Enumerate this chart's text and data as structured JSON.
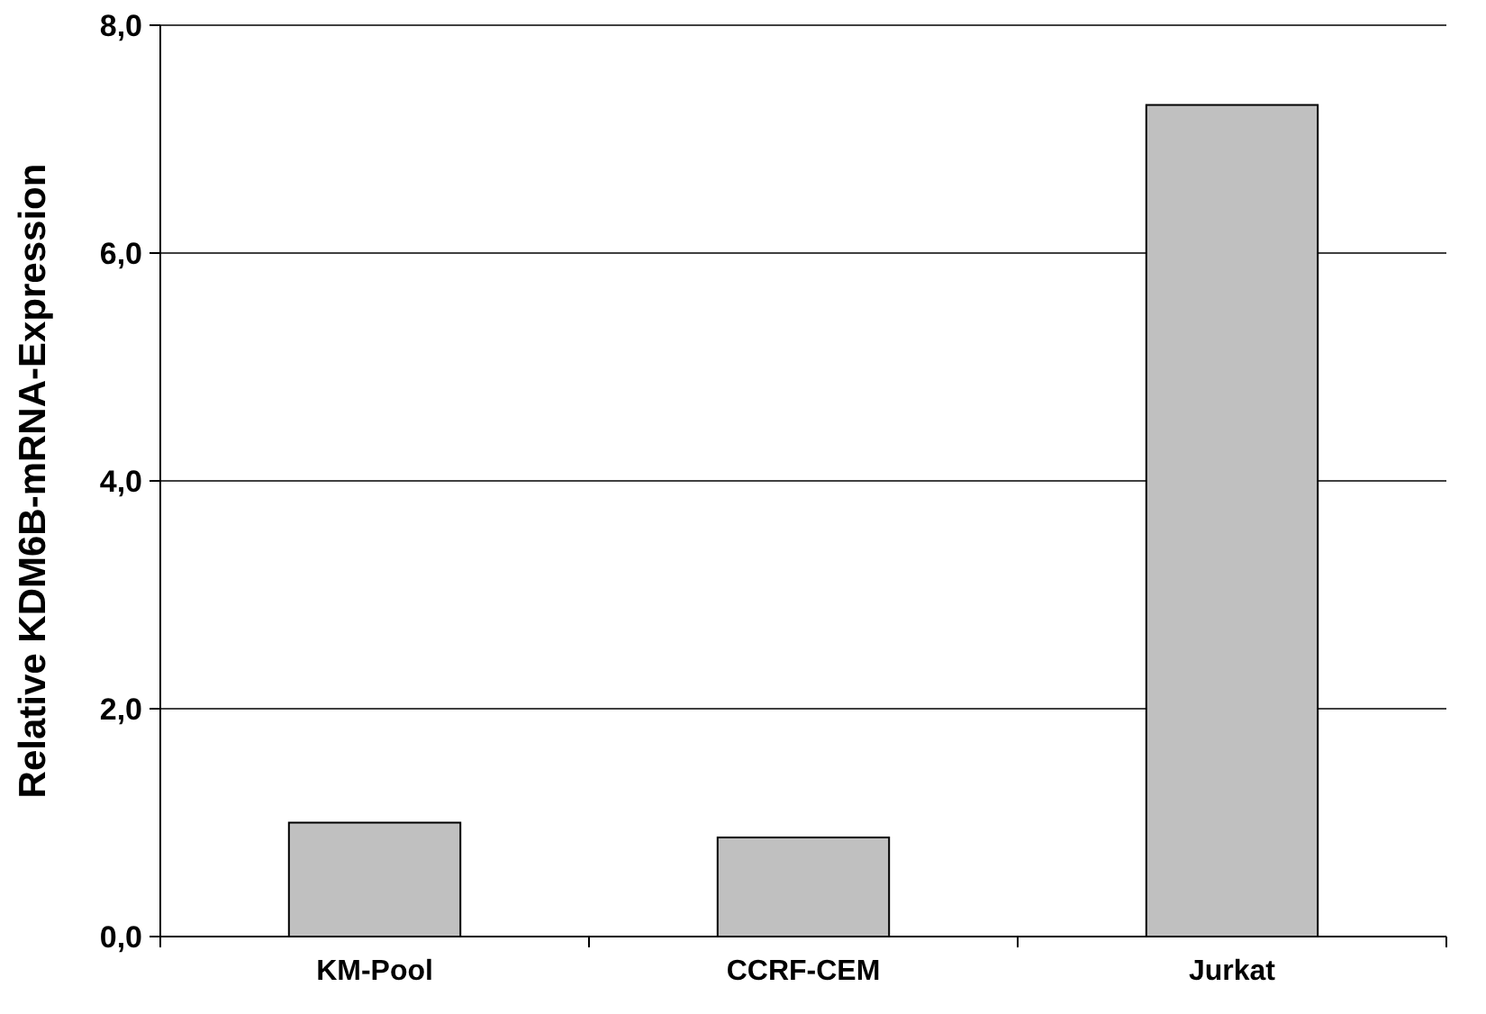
{
  "chart_data": {
    "type": "bar",
    "ylabel": "Relative KDM6B-mRNA-Expression",
    "categories": [
      "KM-Pool",
      "CCRF-CEM",
      "Jurkat"
    ],
    "values": [
      1.0,
      0.87,
      7.3
    ],
    "color": "#c0c0c0",
    "ylim": [
      0,
      8
    ],
    "yticks": [
      {
        "value": 0,
        "label": "0,0"
      },
      {
        "value": 2,
        "label": "2,0"
      },
      {
        "value": 4,
        "label": "4,0"
      },
      {
        "value": 6,
        "label": "6,0"
      },
      {
        "value": 8,
        "label": "8,0"
      }
    ],
    "grid": "y"
  }
}
